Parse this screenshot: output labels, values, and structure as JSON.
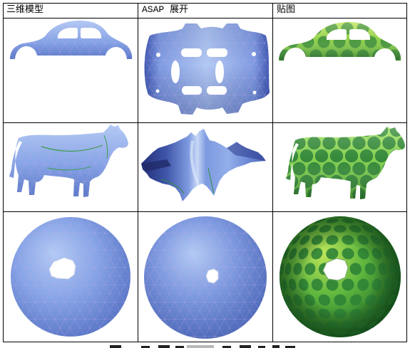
{
  "headers": [
    "三维模型",
    "ASAP 展开",
    "贴图"
  ],
  "colors": {
    "grid_line": "#000000",
    "mesh_blue_light": "#b3cbf5",
    "mesh_blue": "#86a3e6",
    "mesh_blue_dark": "#5c78c8",
    "texture_green_light": "#bde65a",
    "texture_green": "#5fb63e",
    "texture_green_dark": "#2c8236",
    "hole": "#ffffff"
  }
}
